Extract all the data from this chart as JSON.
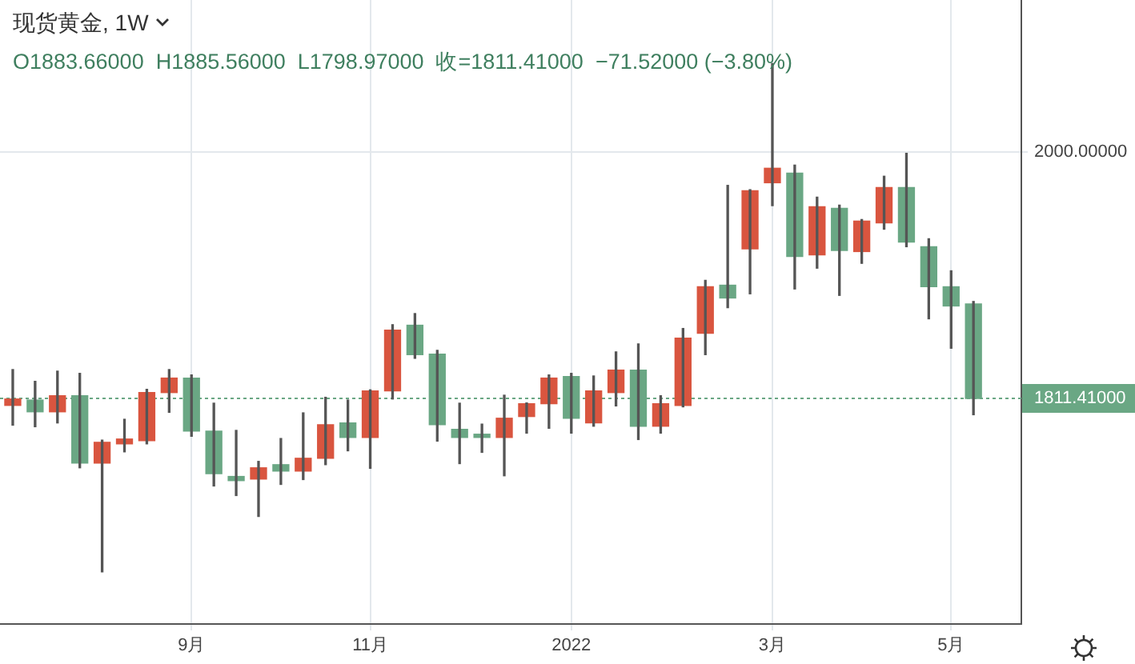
{
  "chart_data": {
    "type": "candlestick",
    "title": "现货黄金, 1W",
    "subtitle": "O1883.66000  H1885.56000  L1798.97000  收=1811.41000  −71.52000 (−3.80%)",
    "x": [
      "2021-07-12",
      "2021-07-19",
      "2021-07-26",
      "2021-08-02",
      "2021-08-09",
      "2021-08-16",
      "2021-08-23",
      "2021-08-30",
      "2021-09-06",
      "2021-09-13",
      "2021-09-20",
      "2021-09-27",
      "2021-10-04",
      "2021-10-11",
      "2021-10-18",
      "2021-10-25",
      "2021-11-01",
      "2021-11-08",
      "2021-11-15",
      "2021-11-22",
      "2021-11-29",
      "2021-12-06",
      "2021-12-13",
      "2021-12-20",
      "2021-12-27",
      "2022-01-03",
      "2022-01-10",
      "2022-01-17",
      "2022-01-24",
      "2022-01-31",
      "2022-02-07",
      "2022-02-14",
      "2022-02-21",
      "2022-02-28",
      "2022-03-07",
      "2022-03-14",
      "2022-03-21",
      "2022-03-28",
      "2022-04-04",
      "2022-04-11",
      "2022-04-18",
      "2022-04-25",
      "2022-05-02",
      "2022-05-09"
    ],
    "ohlc": [
      [
        1806.1,
        1833.5,
        1791.0,
        1811.0
      ],
      [
        1810.2,
        1824.5,
        1789.8,
        1801.2
      ],
      [
        1801.2,
        1832.3,
        1792.7,
        1813.5
      ],
      [
        1813.5,
        1830.6,
        1758.4,
        1762.0
      ],
      [
        1762.0,
        1779.6,
        1678.8,
        1777.9
      ],
      [
        1776.7,
        1795.5,
        1770.6,
        1780.4
      ],
      [
        1779.2,
        1818.4,
        1776.7,
        1815.9
      ],
      [
        1815.9,
        1833.5,
        1800.8,
        1827.0
      ],
      [
        1827.0,
        1829.4,
        1782.5,
        1786.5
      ],
      [
        1786.5,
        1807.8,
        1744.5,
        1753.9
      ],
      [
        1751.8,
        1787.0,
        1737.2,
        1748.6
      ],
      [
        1749.8,
        1763.3,
        1721.2,
        1758.4
      ],
      [
        1760.8,
        1780.8,
        1745.7,
        1755.9
      ],
      [
        1755.9,
        1800.4,
        1749.4,
        1765.7
      ],
      [
        1765.7,
        1812.3,
        1760.8,
        1791.4
      ],
      [
        1792.7,
        1810.2,
        1771.4,
        1781.6
      ],
      [
        1781.6,
        1818.0,
        1758.0,
        1817.2
      ],
      [
        1817.2,
        1867.8,
        1811.0,
        1863.7
      ],
      [
        1867.4,
        1876.3,
        1842.1,
        1844.9
      ],
      [
        1845.3,
        1848.2,
        1778.8,
        1791.4
      ],
      [
        1787.8,
        1807.8,
        1761.6,
        1781.6
      ],
      [
        1784.1,
        1791.8,
        1770.2,
        1781.6
      ],
      [
        1781.6,
        1813.9,
        1752.3,
        1796.3
      ],
      [
        1797.6,
        1808.0,
        1784.9,
        1807.4
      ],
      [
        1807.4,
        1829.4,
        1788.6,
        1827.0
      ],
      [
        1828.2,
        1830.6,
        1784.9,
        1796.3
      ],
      [
        1792.7,
        1828.6,
        1790.2,
        1817.2
      ],
      [
        1815.9,
        1847.0,
        1805.7,
        1833.1
      ],
      [
        1833.1,
        1853.1,
        1780.0,
        1790.2
      ],
      [
        1790.2,
        1813.5,
        1784.9,
        1807.4
      ],
      [
        1806.1,
        1864.9,
        1805.0,
        1857.6
      ],
      [
        1861.2,
        1901.7,
        1844.9,
        1896.8
      ],
      [
        1898.0,
        1974.3,
        1880.8,
        1888.2
      ],
      [
        1925.7,
        1971.0,
        1891.4,
        1970.2
      ],
      [
        1976.3,
        2067.4,
        1958.8,
        1987.4
      ],
      [
        1983.7,
        1989.8,
        1895.1,
        1920.0
      ],
      [
        1921.2,
        1965.3,
        1911.0,
        1958.0
      ],
      [
        1956.8,
        1959.2,
        1890.2,
        1924.5
      ],
      [
        1923.7,
        1948.2,
        1914.7,
        1947.0
      ],
      [
        1945.7,
        1981.3,
        1940.8,
        1972.7
      ],
      [
        1972.7,
        1998.8,
        1927.4,
        1931.0
      ],
      [
        1927.4,
        1933.5,
        1872.3,
        1896.8
      ],
      [
        1896.8,
        1909.0,
        1849.8,
        1882.1
      ],
      [
        1883.66,
        1885.56,
        1798.97,
        1811.41
      ]
    ],
    "colors": [
      "#d9553f",
      "#6aa784",
      "#d9553f",
      "#6aa784",
      "#d9553f",
      "#d9553f",
      "#d9553f",
      "#d9553f",
      "#6aa784",
      "#6aa784",
      "#6aa784",
      "#d9553f",
      "#6aa784",
      "#d9553f",
      "#d9553f",
      "#6aa784",
      "#d9553f",
      "#d9553f",
      "#6aa784",
      "#6aa784",
      "#6aa784",
      "#6aa784",
      "#d9553f",
      "#d9553f",
      "#d9553f",
      "#6aa784",
      "#d9553f",
      "#d9553f",
      "#6aa784",
      "#d9553f",
      "#d9553f",
      "#d9553f",
      "#6aa784",
      "#d9553f",
      "#d9553f",
      "#6aa784",
      "#d9553f",
      "#6aa784",
      "#d9553f",
      "#d9553f",
      "#6aa784",
      "#6aa784",
      "#6aa784",
      "#6aa784"
    ],
    "xlim": [
      "2021-07-08",
      "2022-05-24"
    ],
    "xticks": [
      {
        "value": "2021-09-06",
        "label": "9月"
      },
      {
        "value": "2021-11-01",
        "label": "11月"
      },
      {
        "value": "2022-01-03",
        "label": "2022"
      },
      {
        "value": "2022-03-07",
        "label": "3月"
      },
      {
        "value": "2022-05-02",
        "label": "5月"
      }
    ],
    "ylim": [
      1639,
      2116
    ],
    "yticks": [
      {
        "value": 1811.41,
        "label": "1811.41000"
      },
      {
        "value": 2000,
        "label": "2000.00000"
      }
    ],
    "ref_lines": [
      {
        "axis": "y",
        "value": 1811.41,
        "color": "#6aa784",
        "line_style": "dotted"
      }
    ],
    "grid": true,
    "legend": false
  }
}
